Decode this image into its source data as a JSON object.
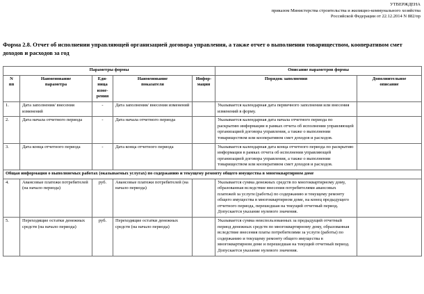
{
  "approval": {
    "line1": "УТВЕРЖДЕНА",
    "line2": "приказом  Министерства строительства и жилищно-коммунального хозяйства",
    "line3": "Российской Федерации от 22.12.2014 N 882/пр"
  },
  "title": "Форма 2.8. Отчет об исполнении управляющей организацией договора управления, а также отчет о выполнении товариществом, кооперативом смет доходов и расходов за год",
  "table": {
    "group_headers": {
      "left": "Параметры формы",
      "right": "Описание параметров формы"
    },
    "columns": {
      "num": "N\nпп",
      "param": "Наименование\nпараметра",
      "unit": "Еди-\nница\nизме-\nрения",
      "indicator": "Наименование\nпоказателя",
      "info": "Инфор-\nмация",
      "order": "Порядок заполнения",
      "additional": "Дополнительное\nописание"
    },
    "rows": [
      {
        "type": "data",
        "num": "1.",
        "param": "Дата заполнения/ внесения изменений",
        "unit": "-",
        "indicator": "Дата заполнения/ внесения изменений",
        "info": "",
        "order": "Указывается календарная дата первичного заполнения или внесения изменений в форму.",
        "additional": ""
      },
      {
        "type": "data",
        "num": "2.",
        "param": "Дата начала отчетного периода",
        "unit": "-",
        "indicator": "Дата начала отчетного периода",
        "info": "",
        "order": "Указывается календарная дата начала отчетного периода по раскрытию информации в рамках отчета об исполнении управляющей организацией договора управления, а также о выполнении товариществом или кооперативом смет доходов и расходов.",
        "additional": ""
      },
      {
        "type": "data",
        "num": "3.",
        "param": "Дата конца отчетного периода",
        "unit": "-",
        "indicator": "Дата конца отчетного периода",
        "info": "",
        "order": "Указывается календарная дата конца отчетного периода по раскрытию информации в рамках отчета об исполнении управляющей организацией договора управления, а также о выполнении товариществом или кооперативом смет доходов и расходов.",
        "additional": ""
      },
      {
        "type": "section",
        "text": "Общая информация о выполняемых работах (оказываемых услугах) по содержанию и текущему ремонту общего имущества в многоквартирном доме"
      },
      {
        "type": "data",
        "num": "4.",
        "param": "Авансовые платежи потребителей (на начало периода)",
        "unit": "руб.",
        "indicator": "Авансовые платежи потребителей (на начало периода)",
        "info": "",
        "order": "Указывается сумма денежных средств по многоквартирному дому, образованная вследствие внесения потребителями авансовых платежей за услуги (работы) по содержанию и текущему ремонту общего имущества в многоквартирном доме, на конец предыдущего отчетного периода, перешедшая на текущий отчетный период. Допускается указание нулевого значения.",
        "additional": ""
      },
      {
        "type": "data",
        "num": "5.",
        "param": "Переходящие остатки денежных средств (на начало периода)",
        "unit": "руб.",
        "indicator": "Переходящие остатки денежных средств (на начало периода)",
        "info": "",
        "order": "Указывается сумма неиспользованных за предыдущий отчетный период денежных средств по многоквартирному дому, образованная вследствие внесения платы потребителями за услуги (работы) по содержанию и текущему ремонту общего имущества в многоквартирном доме и перешедшая на текущий отчетный период. Допускается указание нулевого значения.",
        "additional": ""
      }
    ]
  }
}
